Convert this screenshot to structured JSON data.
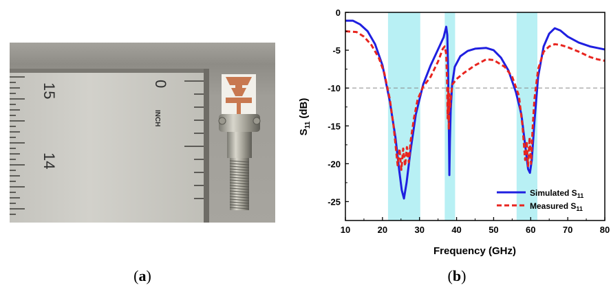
{
  "photo": {
    "ruler_numbers": [
      "15",
      "0",
      "14"
    ],
    "ruler_unit": "INCH"
  },
  "panel_labels": {
    "a": "a",
    "b": "b"
  },
  "chart_data": {
    "type": "line",
    "xlabel": "Frequency (GHz)",
    "ylabel": "S11 (dB)",
    "xlim": [
      10,
      80
    ],
    "ylim": [
      -27.5,
      0
    ],
    "xticks": [
      10,
      20,
      30,
      40,
      50,
      60,
      70,
      80
    ],
    "yticks": [
      0,
      -5,
      -10,
      -15,
      -20,
      -25
    ],
    "reference_line": {
      "y": -10,
      "style": "dashed",
      "color": "#888888"
    },
    "highlight_bands": [
      [
        21.5,
        30.2
      ],
      [
        36.8,
        39.6
      ],
      [
        56.2,
        61.8
      ]
    ],
    "band_color": "#b8f0f4",
    "legend_position": "bottom-right",
    "series": [
      {
        "name": "Simulated S11",
        "color": "#1f1fe0",
        "style": "solid",
        "x": [
          10,
          12,
          14,
          16,
          18,
          20,
          22,
          23.5,
          24.5,
          25.2,
          25.8,
          26.5,
          27.5,
          29,
          31,
          33,
          35,
          36.5,
          37.2,
          37.5,
          37.7,
          37.9,
          38.05,
          38.2,
          38.4,
          38.8,
          39.5,
          41,
          43,
          45,
          48,
          50,
          52,
          54,
          56,
          57.5,
          58.5,
          59.3,
          59.8,
          60.3,
          61,
          62,
          63.5,
          65,
          66.5,
          68,
          70,
          73,
          76,
          78,
          80
        ],
        "values": [
          -1.1,
          -1.1,
          -1.6,
          -2.5,
          -4.2,
          -7.0,
          -11.8,
          -16.5,
          -20.8,
          -23.5,
          -24.6,
          -22.5,
          -18.5,
          -13.5,
          -9.5,
          -7.0,
          -4.9,
          -3.3,
          -1.9,
          -3.0,
          -7.5,
          -14.5,
          -21.5,
          -17.0,
          -13.0,
          -9.5,
          -7.2,
          -5.8,
          -5.1,
          -4.8,
          -4.7,
          -5.0,
          -6.0,
          -7.7,
          -10.5,
          -13.5,
          -17.5,
          -20.7,
          -21.2,
          -19.5,
          -14.5,
          -8.5,
          -4.5,
          -2.8,
          -2.1,
          -2.4,
          -3.2,
          -4.0,
          -4.5,
          -4.7,
          -4.9
        ]
      },
      {
        "name": "Measured S11",
        "color": "#e8251f",
        "style": "dashed",
        "x": [
          10,
          13,
          15,
          17,
          19,
          20.5,
          22,
          23,
          23.6,
          24.1,
          24.6,
          25.1,
          25.6,
          26.1,
          26.6,
          27.1,
          27.6,
          28.5,
          29.5,
          31,
          33,
          35,
          36.3,
          36.8,
          37.2,
          37.45,
          37.6,
          37.75,
          37.9,
          38.05,
          38.25,
          38.5,
          38.9,
          40,
          42,
          45,
          48,
          50,
          53,
          55,
          56.8,
          57.8,
          58.5,
          58.9,
          59.3,
          59.7,
          60.1,
          60.5,
          61,
          62,
          63.5,
          65,
          66.5,
          68,
          70,
          73,
          76,
          78,
          80
        ],
        "values": [
          -2.5,
          -2.6,
          -3.2,
          -4.3,
          -6.0,
          -8.0,
          -11.5,
          -15.0,
          -17.8,
          -20.2,
          -18.0,
          -20.8,
          -18.0,
          -20.3,
          -17.8,
          -19.8,
          -17.0,
          -14.0,
          -11.5,
          -9.8,
          -8.5,
          -6.5,
          -4.8,
          -4.5,
          -5.5,
          -9.0,
          -14.0,
          -10.0,
          -15.5,
          -10.8,
          -12.5,
          -11.0,
          -9.5,
          -8.8,
          -8.0,
          -7.0,
          -6.2,
          -6.3,
          -7.2,
          -8.5,
          -11.0,
          -15.0,
          -19.5,
          -17.0,
          -20.3,
          -16.5,
          -20.0,
          -15.5,
          -11.5,
          -7.5,
          -5.2,
          -4.5,
          -4.2,
          -4.3,
          -4.6,
          -5.2,
          -5.9,
          -6.2,
          -6.4
        ]
      }
    ]
  }
}
